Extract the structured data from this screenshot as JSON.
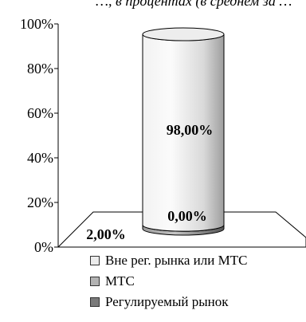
{
  "chart_data": {
    "type": "bar",
    "title": "…, в процентах (в среднем за …",
    "y_ticks": [
      "100%",
      "80%",
      "60%",
      "40%",
      "20%",
      "0%"
    ],
    "ylim": [
      0,
      100
    ],
    "stacked": true,
    "three_d": true,
    "series": [
      {
        "name": "Вне рег. рынка или МТС",
        "value": 98.0,
        "label": "98,00%",
        "color": "#ececec"
      },
      {
        "name": "МТС",
        "value": 0.0,
        "label": "0,00%",
        "color": "#b3b3b3"
      },
      {
        "name": "Регулируемый рынок",
        "value": 2.0,
        "label": "2,00%",
        "color": "#7a7a7a"
      }
    ]
  }
}
